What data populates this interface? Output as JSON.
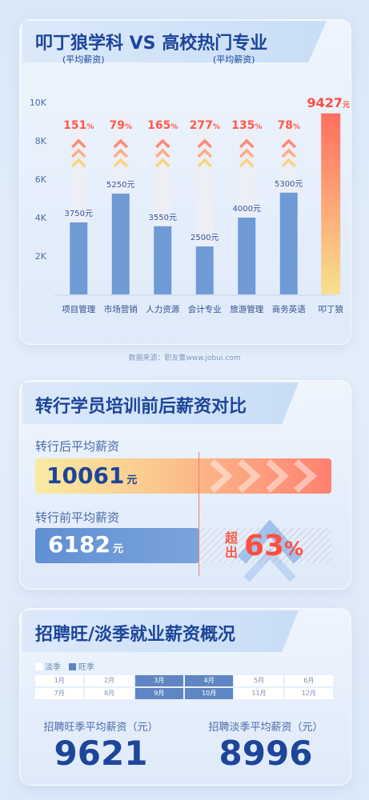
{
  "section1": {
    "title": "叩丁狼学科 VS 高校热门专业",
    "sub_left": "(平均薪资)",
    "sub_right": "(平均薪资)",
    "source": "数据来源：职友集www.jobui.com"
  },
  "chart_data": {
    "type": "bar",
    "title": "叩丁狼学科 VS 高校热门专业",
    "categories": [
      "项目管理",
      "市场营销",
      "人力资源",
      "会计专业",
      "旅游管理",
      "商务英语",
      "叩丁狼"
    ],
    "values": [
      3750,
      5250,
      3550,
      2500,
      4000,
      5300,
      9427
    ],
    "value_labels": [
      "3750元",
      "5250元",
      "3550元",
      "2500元",
      "4000元",
      "5300元",
      "9427元"
    ],
    "pct_labels": [
      "151%",
      "79%",
      "165%",
      "277%",
      "135%",
      "78%",
      ""
    ],
    "yticks": [
      "2K",
      "4K",
      "6K",
      "8K",
      "10K"
    ],
    "ylim": [
      0,
      10000
    ],
    "colors": {
      "bar": "#6f9ad6",
      "track": "#eceff6",
      "pct": "#ff5a4b",
      "highlight_top": "#ff6e5e",
      "highlight_bottom": "#f8e08e"
    }
  },
  "section2": {
    "title": "转行学员培训前后薪资对比",
    "after_label": "转行后平均薪资",
    "after_value": "10061",
    "before_label": "转行前平均薪资",
    "before_value": "6182",
    "unit": "元",
    "exceed_label": "超出",
    "exceed_value": "63",
    "exceed_unit": "%"
  },
  "section3": {
    "title": "招聘旺/淡季就业薪资概况",
    "legend": [
      {
        "label": "淡季",
        "color": "#ffffff"
      },
      {
        "label": "旺季",
        "color": "#5f86c2"
      }
    ],
    "months": [
      {
        "label": "1月",
        "peak": false
      },
      {
        "label": "2月",
        "peak": false
      },
      {
        "label": "3月",
        "peak": true
      },
      {
        "label": "4月",
        "peak": true
      },
      {
        "label": "5月",
        "peak": false
      },
      {
        "label": "6月",
        "peak": false
      },
      {
        "label": "7月",
        "peak": false
      },
      {
        "label": "8月",
        "peak": false
      },
      {
        "label": "9月",
        "peak": true
      },
      {
        "label": "10月",
        "peak": true
      },
      {
        "label": "11月",
        "peak": false
      },
      {
        "label": "12月",
        "peak": false
      }
    ],
    "peak_label": "招聘旺季平均薪资（元）",
    "peak_value": "9621",
    "off_label": "招聘淡季平均薪资（元）",
    "off_value": "8996"
  }
}
